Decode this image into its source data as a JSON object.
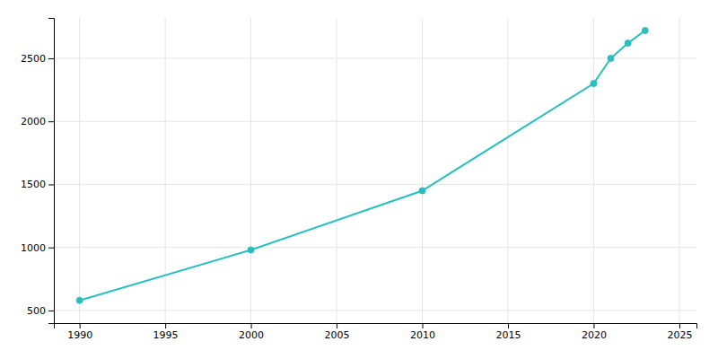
{
  "chart_data": {
    "type": "line",
    "x": [
      1990,
      2000,
      2010,
      2020,
      2021,
      2022,
      2023
    ],
    "values": [
      580,
      980,
      1450,
      2300,
      2500,
      2620,
      2720
    ],
    "color": "#2abfbf",
    "marker": "circle",
    "xlim": [
      1988.5,
      2026
    ],
    "ylim": [
      400,
      2820
    ],
    "xticks": [
      1990,
      1995,
      2000,
      2005,
      2010,
      2015,
      2020,
      2025
    ],
    "yticks": [
      500,
      1000,
      1500,
      2000,
      2500
    ],
    "grid": true
  }
}
